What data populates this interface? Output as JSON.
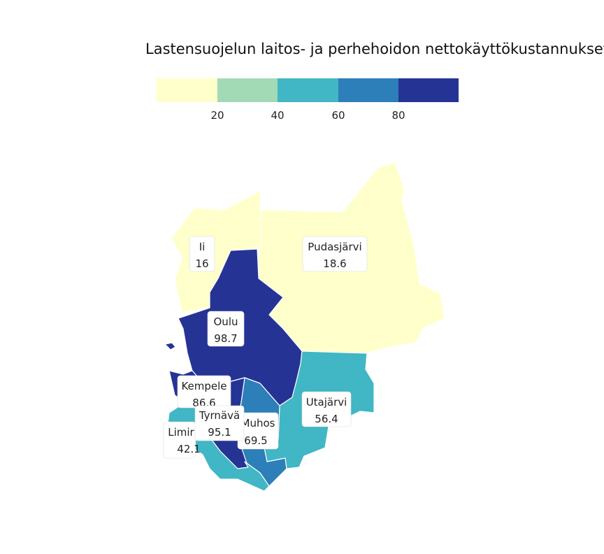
{
  "chart_data": {
    "type": "choropleth",
    "title": "Lastensuojelun laitos- ja perhehoidon nettokäyttökustannukset",
    "legend": {
      "placement": "top",
      "ticks": [
        "20",
        "40",
        "60",
        "80"
      ],
      "bins": [
        {
          "min": 0,
          "max": 20,
          "color": "#ffffcc"
        },
        {
          "min": 20,
          "max": 40,
          "color": "#a1dab4"
        },
        {
          "min": 40,
          "max": 60,
          "color": "#41b6c4"
        },
        {
          "min": 60,
          "max": 80,
          "color": "#2c7fb8"
        },
        {
          "min": 80,
          "max": 100,
          "color": "#253494"
        }
      ]
    },
    "regions": [
      {
        "name": "Ii",
        "value": "16"
      },
      {
        "name": "Pudasjärvi",
        "value": "18.6"
      },
      {
        "name": "Oulu",
        "value": "98.7"
      },
      {
        "name": "Kempele",
        "value": "86.6"
      },
      {
        "name": "Tyrnävä",
        "value": "95.1"
      },
      {
        "name": "Muhos",
        "value": "69.5"
      },
      {
        "name": "Utajärvi",
        "value": "56.4"
      },
      {
        "name": "Limir",
        "value": "42.1"
      }
    ]
  }
}
